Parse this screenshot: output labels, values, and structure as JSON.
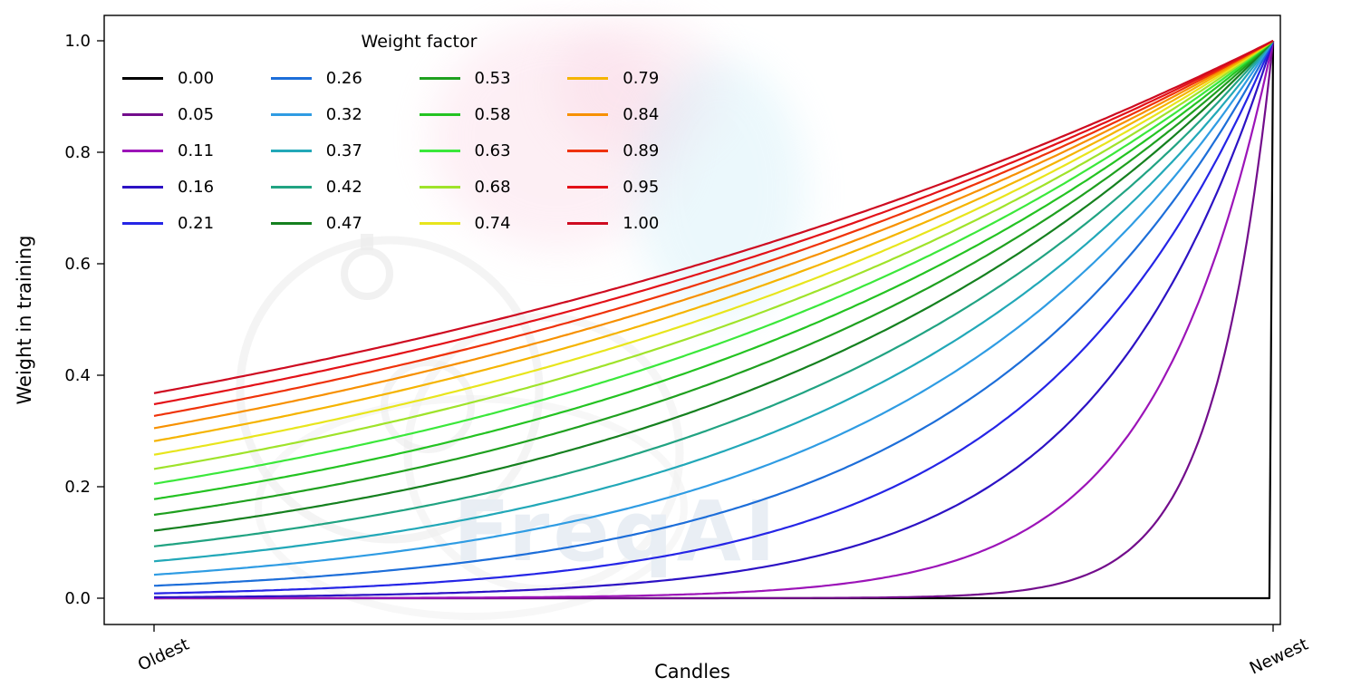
{
  "figure": {
    "background": "#ffffff"
  },
  "watermark": {
    "text": "FreqAI"
  },
  "chart_data": {
    "type": "line",
    "title": "",
    "xlabel": "Candles",
    "ylabel": "Weight in training",
    "x_tick_labels": [
      "Oldest",
      "Newest"
    ],
    "y_ticks": [
      0,
      0.2,
      0.4,
      0.6,
      0.8,
      1.0
    ],
    "y_tick_labels": [
      "0.0",
      "0.2",
      "0.4",
      "0.6",
      "0.8",
      "1.0"
    ],
    "ylim": [
      0,
      1
    ],
    "grid": false,
    "legend_title": "Weight factor",
    "legend_position": "upper left",
    "legend_columns": 4,
    "curve_formula": "weight(t) = exp(-(1 - t) / weight_factor), with t = 0 at Oldest and t = 1 at Newest; every curve equals 1.0 at the newest candle; the 0.00 curve is 0 for all candles except the newest",
    "series": [
      {
        "label": "0.00",
        "factor": 0.0,
        "color": "#000000"
      },
      {
        "label": "0.05",
        "factor": 0.0526,
        "color": "#730d8c"
      },
      {
        "label": "0.11",
        "factor": 0.1053,
        "color": "#9c14b8"
      },
      {
        "label": "0.16",
        "factor": 0.1579,
        "color": "#2c12c4"
      },
      {
        "label": "0.21",
        "factor": 0.2105,
        "color": "#2525e6"
      },
      {
        "label": "0.26",
        "factor": 0.2632,
        "color": "#1d6ed9"
      },
      {
        "label": "0.32",
        "factor": 0.3158,
        "color": "#2f9ce3"
      },
      {
        "label": "0.37",
        "factor": 0.3684,
        "color": "#22a8b8"
      },
      {
        "label": "0.42",
        "factor": 0.4211,
        "color": "#21a382"
      },
      {
        "label": "0.47",
        "factor": 0.4737,
        "color": "#15801f"
      },
      {
        "label": "0.53",
        "factor": 0.5263,
        "color": "#1fa01f"
      },
      {
        "label": "0.58",
        "factor": 0.5789,
        "color": "#24c322"
      },
      {
        "label": "0.63",
        "factor": 0.6316,
        "color": "#3be83b"
      },
      {
        "label": "0.68",
        "factor": 0.6842,
        "color": "#9fe32a"
      },
      {
        "label": "0.74",
        "factor": 0.7368,
        "color": "#e8e51c"
      },
      {
        "label": "0.79",
        "factor": 0.7895,
        "color": "#f5b400"
      },
      {
        "label": "0.84",
        "factor": 0.8421,
        "color": "#f79000"
      },
      {
        "label": "0.89",
        "factor": 0.8947,
        "color": "#ef3209"
      },
      {
        "label": "0.95",
        "factor": 0.9474,
        "color": "#e31118"
      },
      {
        "label": "1.00",
        "factor": 1.0,
        "color": "#ce0b20"
      }
    ]
  }
}
